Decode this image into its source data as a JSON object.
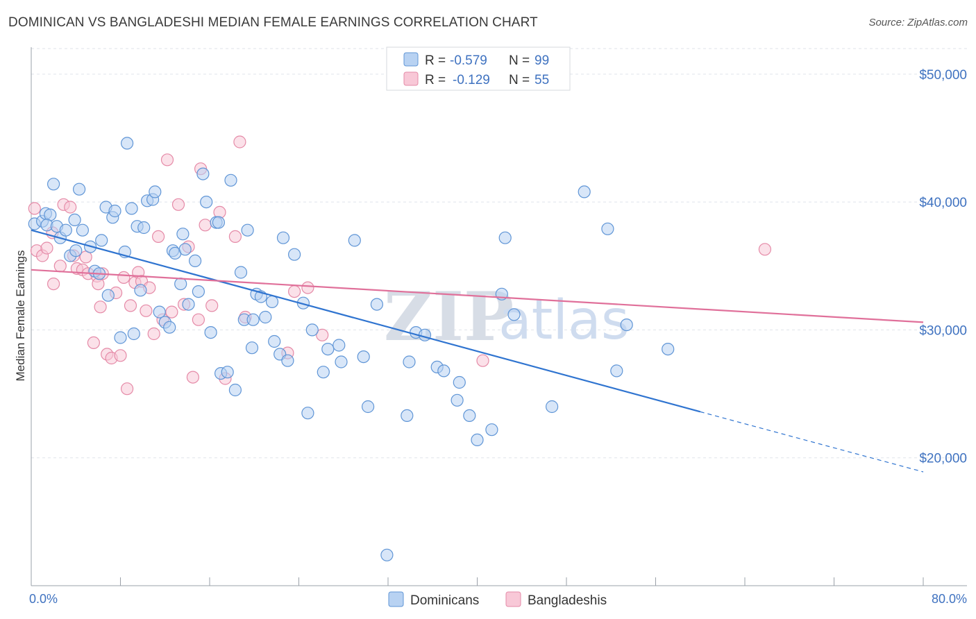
{
  "title": "DOMINICAN VS BANGLADESHI MEDIAN FEMALE EARNINGS CORRELATION CHART",
  "source": "Source: ZipAtlas.com",
  "watermark": {
    "zip": "ZIP",
    "atlas": "atlas"
  },
  "colors": {
    "blue_fill": "#b8d2f2",
    "blue_stroke": "#5f95d6",
    "blue_line": "#2f74d0",
    "pink_fill": "#f8c8d7",
    "pink_stroke": "#e58aa7",
    "pink_line": "#e0709a",
    "grid": "#dfe3ea",
    "tick_text": "#3f72c0"
  },
  "legend": {
    "rows": [
      {
        "r_label": "R =",
        "r_value": "-0.579",
        "n_label": "N =",
        "n_value": "99"
      },
      {
        "r_label": "R =",
        "r_value": "-0.129",
        "n_label": "N =",
        "n_value": "55"
      }
    ]
  },
  "chart_data": {
    "type": "scatter",
    "title": "DOMINICAN VS BANGLADESHI MEDIAN FEMALE EARNINGS CORRELATION CHART",
    "xlabel": "",
    "ylabel": "Median Female Earnings",
    "x_unit": "percent",
    "xlim": [
      0,
      80
    ],
    "ylim": [
      10000,
      52000
    ],
    "x_tick_labels": [
      "0.0%",
      "80.0%"
    ],
    "y_ticks": [
      20000,
      30000,
      40000,
      50000
    ],
    "y_tick_labels": [
      "$20,000",
      "$30,000",
      "$40,000",
      "$50,000"
    ],
    "grid": true,
    "legend_position": "top-center",
    "series": [
      {
        "name": "Dominicans",
        "color": "#5f95d6",
        "r": -0.579,
        "n": 99,
        "trend": {
          "x0": 0,
          "y0": 37800,
          "x1": 60,
          "y1": 23600,
          "dash_to_x": 80,
          "dash_to_y": 18900
        },
        "points": [
          [
            0.3,
            38300
          ],
          [
            1.0,
            38500
          ],
          [
            1.3,
            39100
          ],
          [
            1.7,
            39000
          ],
          [
            1.4,
            38200
          ],
          [
            2.0,
            41400
          ],
          [
            2.3,
            38100
          ],
          [
            2.6,
            37200
          ],
          [
            3.1,
            37800
          ],
          [
            3.5,
            35800
          ],
          [
            3.9,
            38600
          ],
          [
            4.3,
            41000
          ],
          [
            4.6,
            37800
          ],
          [
            5.3,
            36500
          ],
          [
            5.7,
            34600
          ],
          [
            6.1,
            34400
          ],
          [
            6.7,
            39600
          ],
          [
            6.9,
            32700
          ],
          [
            7.3,
            38800
          ],
          [
            7.5,
            39300
          ],
          [
            8.0,
            29400
          ],
          [
            8.4,
            36100
          ],
          [
            8.6,
            44600
          ],
          [
            9.0,
            39500
          ],
          [
            9.5,
            38100
          ],
          [
            9.8,
            33100
          ],
          [
            10.1,
            38000
          ],
          [
            10.4,
            40100
          ],
          [
            10.9,
            40200
          ],
          [
            11.1,
            40800
          ],
          [
            11.5,
            31400
          ],
          [
            12.0,
            30600
          ],
          [
            12.4,
            30200
          ],
          [
            12.7,
            36200
          ],
          [
            12.9,
            36000
          ],
          [
            13.4,
            33600
          ],
          [
            13.6,
            37500
          ],
          [
            14.1,
            32000
          ],
          [
            14.7,
            35400
          ],
          [
            15.0,
            33000
          ],
          [
            15.4,
            42200
          ],
          [
            15.7,
            40000
          ],
          [
            16.1,
            29800
          ],
          [
            16.6,
            38400
          ],
          [
            17.0,
            26600
          ],
          [
            17.6,
            26700
          ],
          [
            17.9,
            41700
          ],
          [
            18.3,
            25300
          ],
          [
            18.8,
            34500
          ],
          [
            19.1,
            30800
          ],
          [
            19.4,
            37800
          ],
          [
            19.8,
            28600
          ],
          [
            20.2,
            32800
          ],
          [
            20.6,
            32600
          ],
          [
            21.0,
            31000
          ],
          [
            21.6,
            32200
          ],
          [
            21.8,
            29100
          ],
          [
            22.3,
            28100
          ],
          [
            22.6,
            37200
          ],
          [
            23.0,
            27600
          ],
          [
            23.6,
            35900
          ],
          [
            24.4,
            32100
          ],
          [
            24.8,
            23500
          ],
          [
            25.2,
            30000
          ],
          [
            26.2,
            26700
          ],
          [
            26.6,
            28500
          ],
          [
            27.6,
            28800
          ],
          [
            27.8,
            27500
          ],
          [
            29.0,
            37000
          ],
          [
            29.8,
            27900
          ],
          [
            30.2,
            24000
          ],
          [
            31.0,
            32000
          ],
          [
            31.9,
            12400
          ],
          [
            33.7,
            23300
          ],
          [
            33.9,
            27500
          ],
          [
            34.5,
            29800
          ],
          [
            35.3,
            29600
          ],
          [
            36.4,
            27100
          ],
          [
            37.0,
            26800
          ],
          [
            38.2,
            24500
          ],
          [
            38.4,
            25900
          ],
          [
            39.3,
            23300
          ],
          [
            40.0,
            21400
          ],
          [
            41.3,
            22200
          ],
          [
            42.2,
            32800
          ],
          [
            42.5,
            37200
          ],
          [
            43.3,
            31200
          ],
          [
            46.7,
            24000
          ],
          [
            49.6,
            40800
          ],
          [
            51.7,
            37900
          ],
          [
            52.5,
            26800
          ],
          [
            53.4,
            30400
          ],
          [
            57.1,
            28500
          ],
          [
            19.9,
            30800
          ],
          [
            16.8,
            38400
          ],
          [
            13.8,
            36300
          ],
          [
            9.2,
            29700
          ],
          [
            6.3,
            37000
          ],
          [
            4.0,
            36200
          ]
        ]
      },
      {
        "name": "Bangladeshis",
        "color": "#e58aa7",
        "r": -0.129,
        "n": 55,
        "trend": {
          "x0": 0,
          "y0": 34700,
          "x1": 80,
          "y1": 30600
        },
        "points": [
          [
            0.3,
            39500
          ],
          [
            0.5,
            36200
          ],
          [
            1.0,
            35800
          ],
          [
            1.4,
            36400
          ],
          [
            1.9,
            37600
          ],
          [
            2.0,
            33600
          ],
          [
            2.6,
            35000
          ],
          [
            2.9,
            39800
          ],
          [
            3.5,
            39600
          ],
          [
            3.8,
            35800
          ],
          [
            4.1,
            34800
          ],
          [
            4.6,
            34700
          ],
          [
            4.9,
            35700
          ],
          [
            5.1,
            34400
          ],
          [
            5.6,
            29000
          ],
          [
            5.9,
            34200
          ],
          [
            6.0,
            33600
          ],
          [
            6.2,
            31800
          ],
          [
            6.4,
            34400
          ],
          [
            6.8,
            28100
          ],
          [
            7.2,
            27800
          ],
          [
            7.6,
            32900
          ],
          [
            8.0,
            28000
          ],
          [
            8.3,
            34100
          ],
          [
            8.6,
            25400
          ],
          [
            8.9,
            31900
          ],
          [
            9.3,
            33700
          ],
          [
            9.6,
            34500
          ],
          [
            9.9,
            33800
          ],
          [
            10.3,
            31500
          ],
          [
            10.6,
            33300
          ],
          [
            11.0,
            29700
          ],
          [
            11.4,
            37300
          ],
          [
            11.8,
            30800
          ],
          [
            12.2,
            43300
          ],
          [
            12.6,
            31400
          ],
          [
            13.2,
            39800
          ],
          [
            13.7,
            32000
          ],
          [
            14.1,
            36500
          ],
          [
            14.5,
            26300
          ],
          [
            15.2,
            42600
          ],
          [
            15.6,
            38200
          ],
          [
            16.2,
            31900
          ],
          [
            16.9,
            39200
          ],
          [
            17.4,
            26200
          ],
          [
            18.3,
            37300
          ],
          [
            18.7,
            44700
          ],
          [
            19.2,
            31000
          ],
          [
            23.0,
            28200
          ],
          [
            23.6,
            33000
          ],
          [
            24.8,
            33300
          ],
          [
            26.1,
            29600
          ],
          [
            40.5,
            27600
          ],
          [
            65.8,
            36300
          ],
          [
            15.0,
            30800
          ]
        ]
      }
    ]
  },
  "bottom_legend": [
    "Dominicans",
    "Bangladeshis"
  ]
}
